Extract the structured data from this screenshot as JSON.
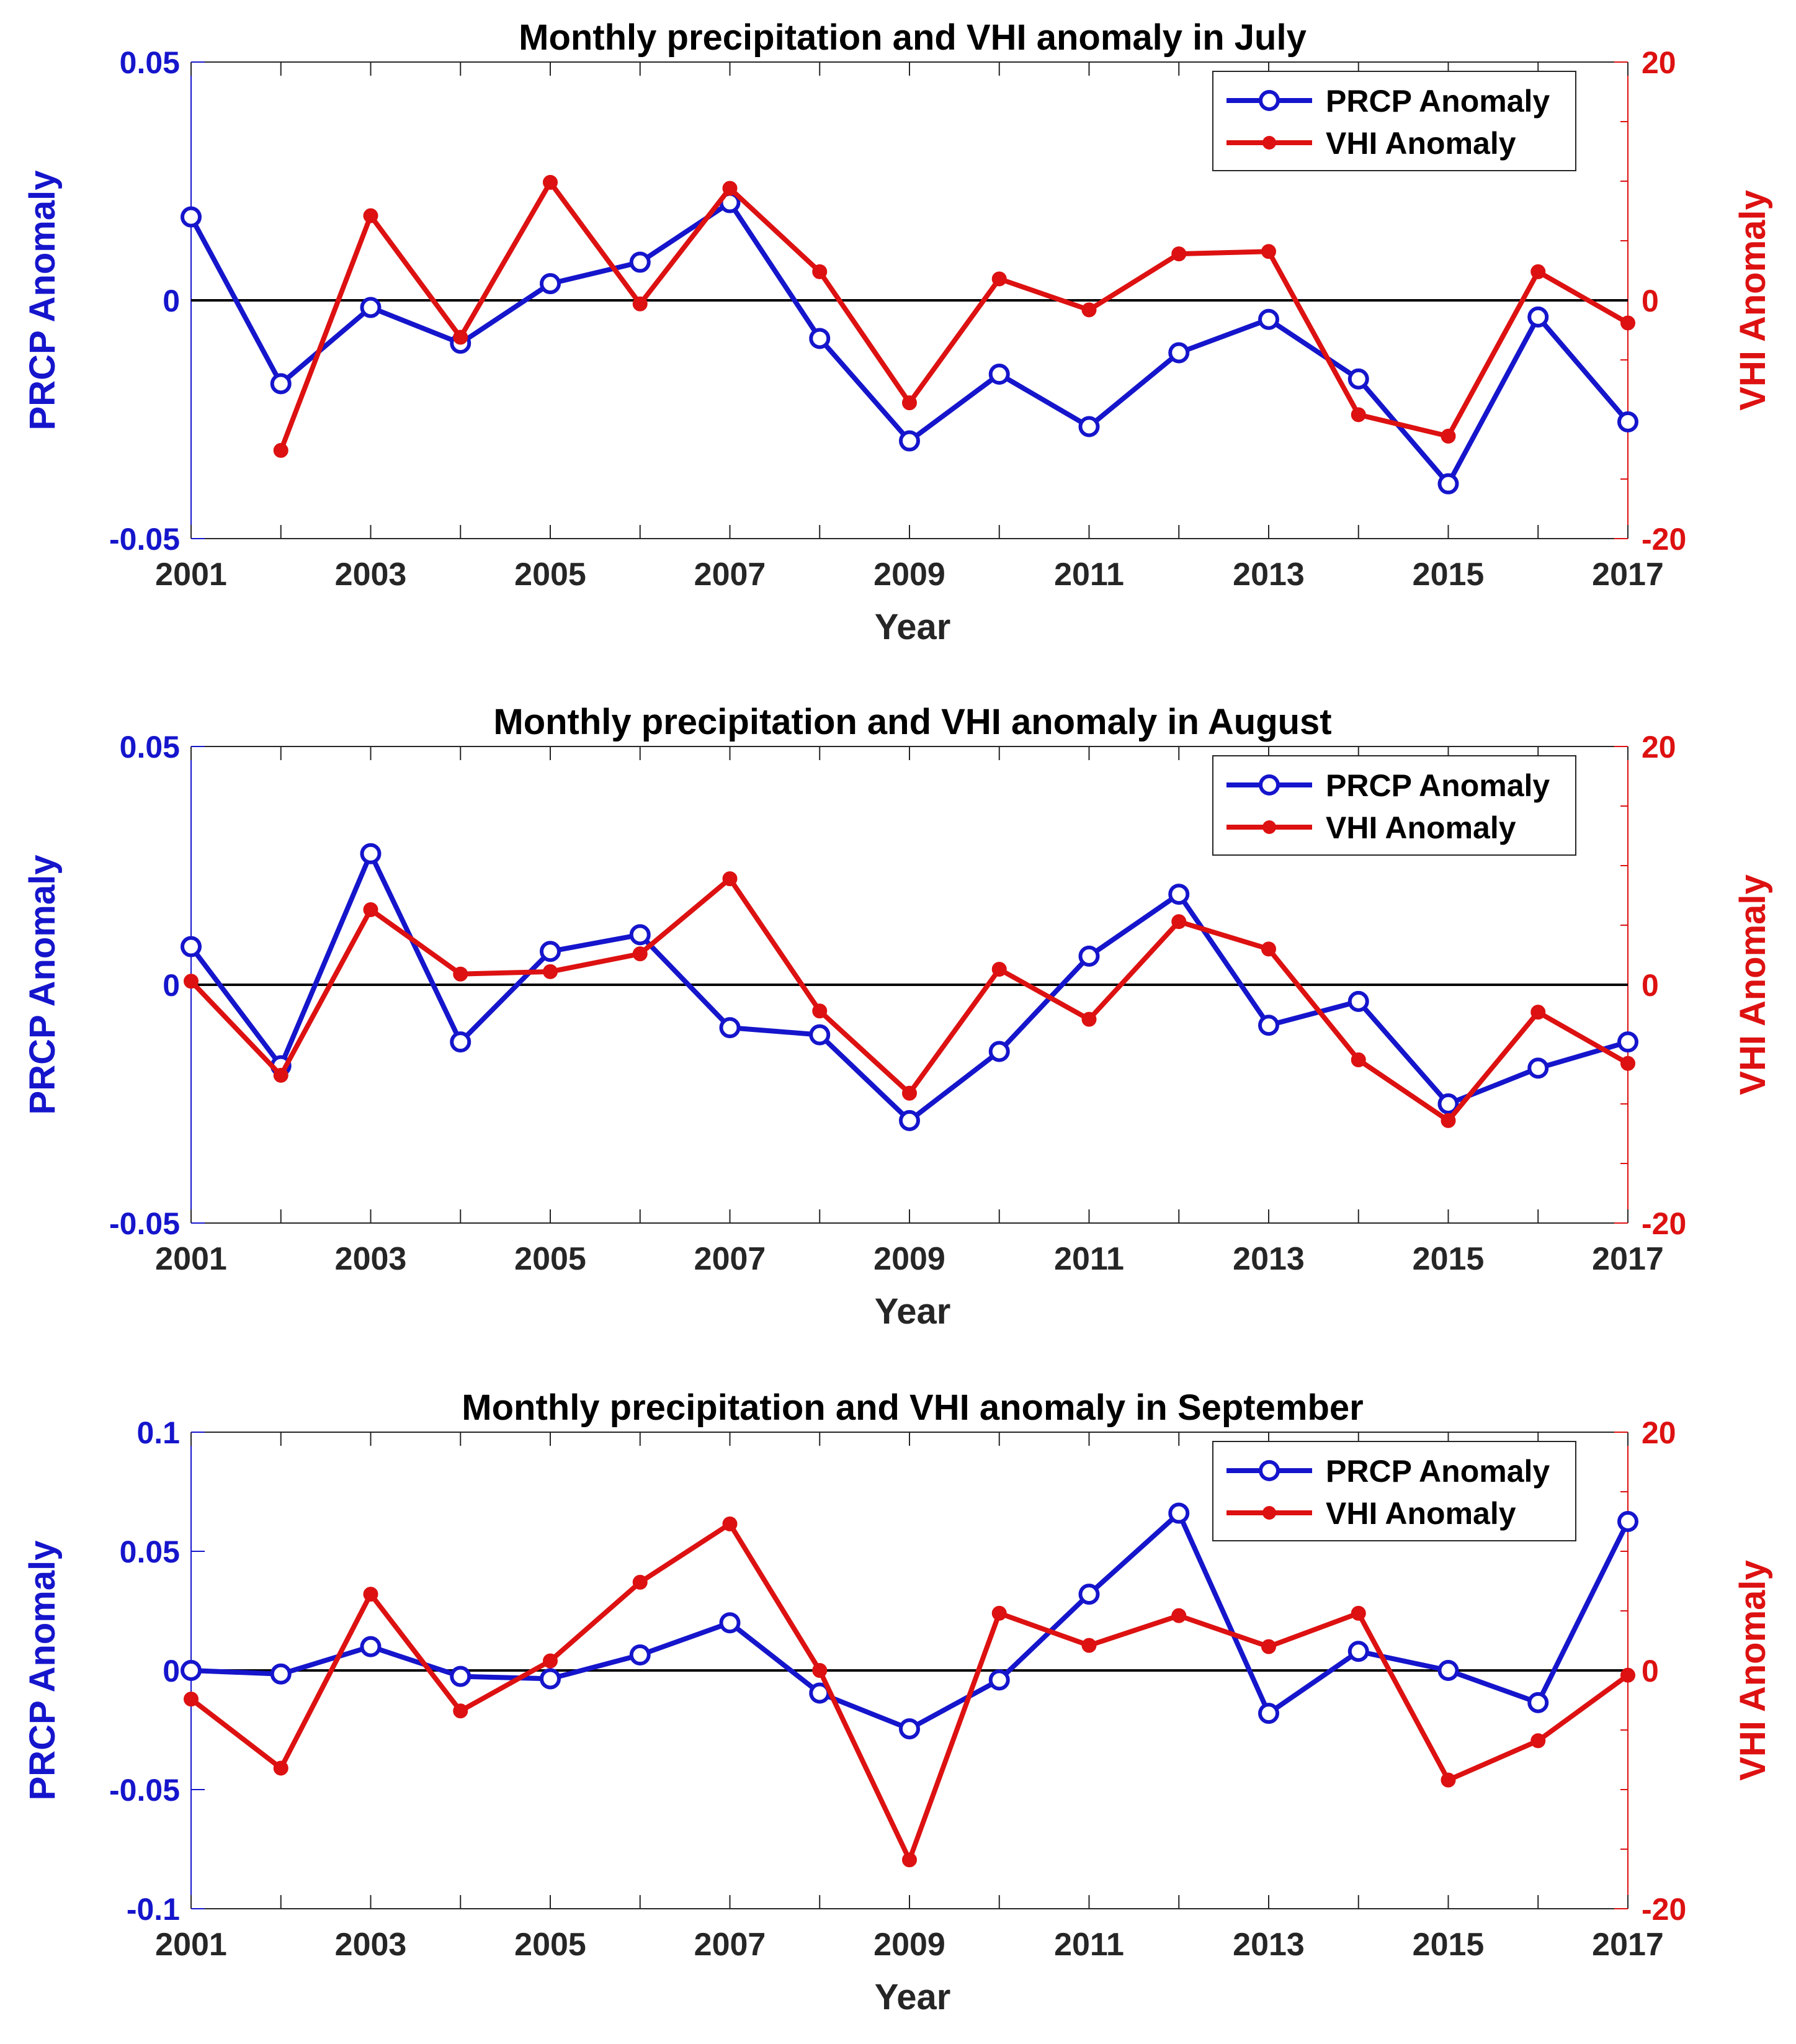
{
  "chart_data": [
    {
      "type": "line",
      "title": "Monthly precipitation and VHI anomaly in July",
      "xlabel": "Year",
      "x": [
        2001,
        2002,
        2003,
        2004,
        2005,
        2006,
        2007,
        2008,
        2009,
        2010,
        2011,
        2012,
        2013,
        2014,
        2015,
        2016,
        2017
      ],
      "x_ticks": [
        "2001",
        "2003",
        "2005",
        "2007",
        "2009",
        "2011",
        "2013",
        "2015",
        "2017"
      ],
      "xlim": [
        2001,
        2017
      ],
      "y_left": {
        "label": "PRCP Anomaly",
        "ylim": [
          -0.05,
          0.05
        ],
        "ticks": [
          -0.05,
          0,
          0.05
        ],
        "tick_labels": [
          "-0.05",
          "0",
          "0.05"
        ],
        "color": "#1515cc"
      },
      "y_right": {
        "label": "VHI Anomaly",
        "ylim": [
          -20,
          20
        ],
        "ticks": [
          -20,
          0,
          20
        ],
        "tick_labels": [
          "-20",
          "0",
          "20"
        ],
        "color": "#dd1111"
      },
      "series": [
        {
          "name": "PRCP Anomaly",
          "axis": "left",
          "color": "#1515cc",
          "marker": "open-circle",
          "values": [
            0.0175,
            -0.0175,
            -0.0015,
            -0.009,
            0.0035,
            0.008,
            0.0205,
            -0.008,
            -0.0295,
            -0.0155,
            -0.0265,
            -0.011,
            -0.004,
            -0.0165,
            -0.0385,
            -0.0035,
            -0.0255
          ]
        },
        {
          "name": "VHI Anomaly",
          "axis": "right",
          "color": "#dd1111",
          "marker": "filled-dot",
          "values": [
            null,
            -12.6,
            7.1,
            -3.1,
            9.9,
            -0.3,
            9.4,
            2.4,
            -8.6,
            1.8,
            -0.8,
            3.9,
            4.1,
            -9.6,
            -11.4,
            2.4,
            -1.9
          ]
        }
      ],
      "zero_line": true,
      "legend": "top-right"
    },
    {
      "type": "line",
      "title": "Monthly precipitation and VHI anomaly in August",
      "xlabel": "Year",
      "x": [
        2001,
        2002,
        2003,
        2004,
        2005,
        2006,
        2007,
        2008,
        2009,
        2010,
        2011,
        2012,
        2013,
        2014,
        2015,
        2016,
        2017
      ],
      "x_ticks": [
        "2001",
        "2003",
        "2005",
        "2007",
        "2009",
        "2011",
        "2013",
        "2015",
        "2017"
      ],
      "xlim": [
        2001,
        2017
      ],
      "y_left": {
        "label": "PRCP Anomaly",
        "ylim": [
          -0.05,
          0.05
        ],
        "ticks": [
          -0.05,
          0,
          0.05
        ],
        "tick_labels": [
          "-0.05",
          "0",
          "0.05"
        ],
        "color": "#1515cc"
      },
      "y_right": {
        "label": "VHI Anomaly",
        "ylim": [
          -20,
          20
        ],
        "ticks": [
          -20,
          0,
          20
        ],
        "tick_labels": [
          "-20",
          "0",
          "20"
        ],
        "color": "#dd1111"
      },
      "series": [
        {
          "name": "PRCP Anomaly",
          "axis": "left",
          "color": "#1515cc",
          "marker": "open-circle",
          "values": [
            0.008,
            -0.017,
            0.0275,
            -0.012,
            0.007,
            0.0105,
            -0.009,
            -0.0105,
            -0.0285,
            -0.014,
            0.006,
            0.019,
            -0.0085,
            -0.0035,
            -0.025,
            -0.0175,
            -0.012
          ]
        },
        {
          "name": "VHI Anomaly",
          "axis": "right",
          "color": "#dd1111",
          "marker": "filled-dot",
          "values": [
            0.3,
            -7.6,
            6.3,
            0.9,
            1.1,
            2.6,
            8.9,
            -2.2,
            -9.1,
            1.3,
            -2.9,
            5.3,
            3.0,
            -6.3,
            -11.4,
            -2.3,
            -6.6
          ]
        }
      ],
      "zero_line": true,
      "legend": "top-right"
    },
    {
      "type": "line",
      "title": "Monthly precipitation and VHI anomaly in September",
      "xlabel": "Year",
      "x": [
        2001,
        2002,
        2003,
        2004,
        2005,
        2006,
        2007,
        2008,
        2009,
        2010,
        2011,
        2012,
        2013,
        2014,
        2015,
        2016,
        2017
      ],
      "x_ticks": [
        "2001",
        "2003",
        "2005",
        "2007",
        "2009",
        "2011",
        "2013",
        "2015",
        "2017"
      ],
      "xlim": [
        2001,
        2017
      ],
      "y_left": {
        "label": "PRCP Anomaly",
        "ylim": [
          -0.1,
          0.1
        ],
        "ticks": [
          -0.1,
          -0.05,
          0,
          0.05,
          0.1
        ],
        "tick_labels": [
          "-0.1",
          "-0.05",
          "0",
          "0.05",
          "0.1"
        ],
        "color": "#1515cc"
      },
      "y_right": {
        "label": "VHI Anomaly",
        "ylim": [
          -20,
          20
        ],
        "ticks": [
          -20,
          0,
          20
        ],
        "tick_labels": [
          "-20",
          "0",
          "20"
        ],
        "color": "#dd1111"
      },
      "series": [
        {
          "name": "PRCP Anomaly",
          "axis": "left",
          "color": "#1515cc",
          "marker": "open-circle",
          "values": [
            0.0,
            -0.0015,
            0.01,
            -0.0025,
            -0.0035,
            0.0065,
            0.02,
            -0.0095,
            -0.0245,
            -0.004,
            0.032,
            0.066,
            -0.018,
            0.008,
            0.0,
            -0.0135,
            0.0625
          ]
        },
        {
          "name": "VHI Anomaly",
          "axis": "right",
          "color": "#dd1111",
          "marker": "filled-dot",
          "values": [
            -2.4,
            -8.2,
            6.4,
            -3.4,
            0.8,
            7.4,
            12.3,
            0.0,
            -15.9,
            4.8,
            2.1,
            4.6,
            2.0,
            4.8,
            -9.2,
            -5.9,
            -0.4
          ]
        }
      ],
      "zero_line": true,
      "legend": "top-right"
    }
  ]
}
